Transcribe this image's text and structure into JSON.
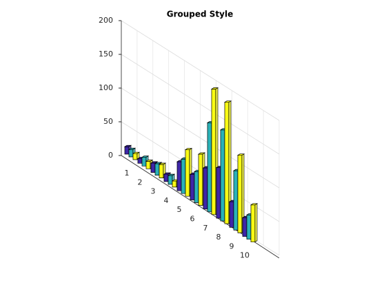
{
  "chart_data": {
    "type": "bar3",
    "title": "Grouped Style",
    "categories": [
      "1",
      "2",
      "3",
      "4",
      "5",
      "6",
      "7",
      "8",
      "9",
      "10"
    ],
    "series": [
      {
        "color": "#3e26a8",
        "values": [
          11,
          7,
          14,
          11,
          43,
          38,
          61,
          75,
          38,
          28
        ]
      },
      {
        "color": "#2ab2b8",
        "values": [
          11,
          13,
          17,
          13,
          51,
          46,
          132,
          135,
          88,
          36
        ]
      },
      {
        "color": "#f9fb15",
        "values": [
          9,
          11,
          20,
          9,
          69,
          76,
          186,
          180,
          115,
          55
        ]
      }
    ],
    "zlim": [
      0,
      200
    ],
    "zticks": [
      0,
      50,
      100,
      150,
      200
    ],
    "grid": true
  }
}
